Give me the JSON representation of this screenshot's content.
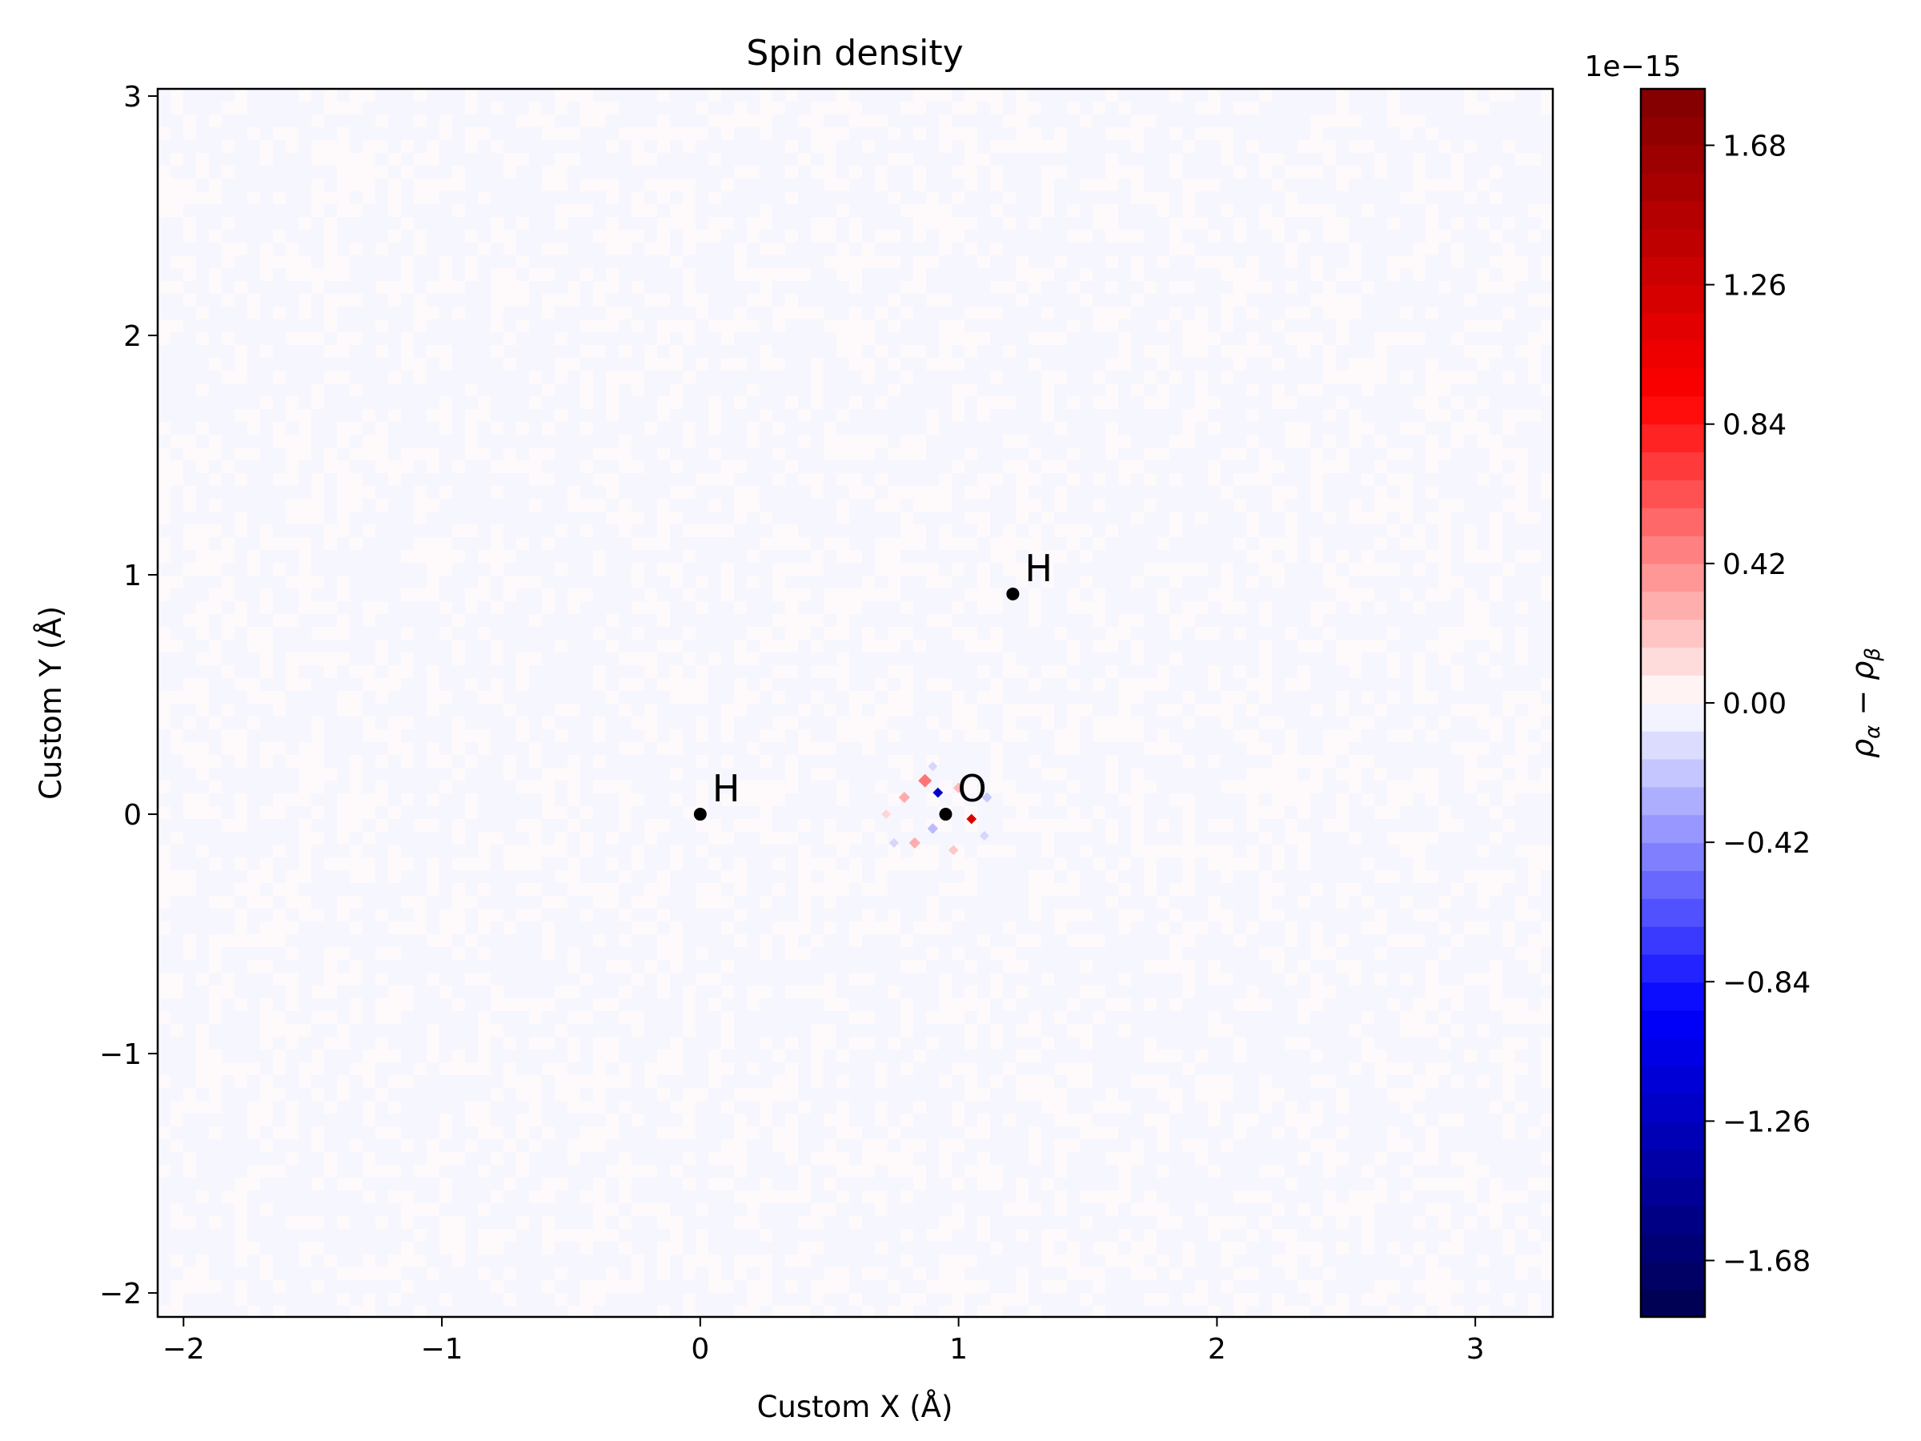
{
  "chart_data": {
    "type": "heatmap",
    "title": "Spin density",
    "xlabel": "Custom X (Å)",
    "ylabel": "Custom Y (Å)",
    "xlim": [
      -2.1,
      3.3
    ],
    "ylim": [
      -2.1,
      3.03
    ],
    "x_ticks": [
      -2,
      -1,
      0,
      1,
      2,
      3
    ],
    "x_tick_labels": [
      "−2",
      "−1",
      "0",
      "1",
      "2",
      "3"
    ],
    "y_ticks": [
      -2,
      -1,
      0,
      1,
      2,
      3
    ],
    "y_tick_labels": [
      "−2",
      "−1",
      "0",
      "1",
      "2",
      "3"
    ],
    "grid": false,
    "colormap": "seismic",
    "colorbar": {
      "label": "ρα − ρβ",
      "label_base": "ρ",
      "label_sub_1": "α",
      "label_sub_2": "β",
      "multiplier": "1e−15",
      "range": [
        -1.85,
        1.85
      ],
      "ticks": [
        1.68,
        1.26,
        0.84,
        0.42,
        0.0,
        -0.42,
        -0.84,
        -1.26,
        -1.68
      ],
      "tick_labels": [
        "1.68",
        "1.26",
        "0.84",
        "0.42",
        "0.00",
        "−0.42",
        "−0.84",
        "−1.26",
        "−1.68"
      ],
      "levels": 44
    },
    "atoms": [
      {
        "symbol": "H",
        "x": 0.0,
        "y": 0.0
      },
      {
        "symbol": "H",
        "x": 1.21,
        "y": 0.92
      },
      {
        "symbol": "O",
        "x": 0.95,
        "y": 0.0
      }
    ],
    "background_value": 0.0,
    "noise_amplitude": 0.02,
    "features": [
      {
        "x": 0.92,
        "y": 0.09,
        "value": -1.2
      },
      {
        "x": 1.05,
        "y": -0.02,
        "value": 1.2
      },
      {
        "x": 0.87,
        "y": 0.14,
        "value": 0.5
      },
      {
        "x": 0.79,
        "y": 0.07,
        "value": 0.3
      },
      {
        "x": 0.83,
        "y": -0.12,
        "value": 0.3
      },
      {
        "x": 1.0,
        "y": 0.11,
        "value": 0.25
      },
      {
        "x": 0.72,
        "y": 0.0,
        "value": 0.15
      },
      {
        "x": 1.11,
        "y": 0.07,
        "value": -0.2
      },
      {
        "x": 1.1,
        "y": -0.09,
        "value": -0.15
      },
      {
        "x": 0.9,
        "y": -0.06,
        "value": -0.25
      },
      {
        "x": 0.9,
        "y": 0.2,
        "value": -0.15
      },
      {
        "x": 0.75,
        "y": -0.12,
        "value": -0.15
      },
      {
        "x": 0.98,
        "y": -0.15,
        "value": 0.2
      }
    ],
    "colors": {
      "background_cell": "#f6f6ff",
      "axis": "#000000",
      "atom": "#000000"
    }
  }
}
